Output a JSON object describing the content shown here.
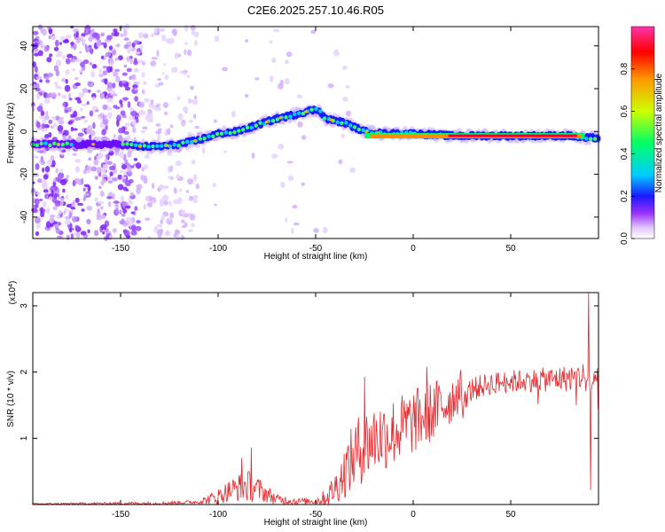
{
  "title": "C2E6.2025.257.10.46.R05",
  "colors": {
    "background": "#ffffff",
    "axis": "#000000",
    "snr_line": "#e8262b",
    "scatter": "#8a2be2"
  },
  "chart_data": [
    {
      "type": "heatmap",
      "xlabel": "Height of straight line (km)",
      "ylabel": "Frequency (Hz)",
      "xlim": [
        -195,
        95
      ],
      "ylim": [
        -50,
        49
      ],
      "x_ticks": [
        -150,
        -100,
        -50,
        0,
        50
      ],
      "y_ticks": [
        -40,
        -20,
        0,
        20,
        40
      ],
      "grid": false,
      "ridge": [
        {
          "x": -195,
          "y": -6
        },
        {
          "x": -170,
          "y": -6
        },
        {
          "x": -150,
          "y": -6
        },
        {
          "x": -140,
          "y": -7
        },
        {
          "x": -130,
          "y": -7
        },
        {
          "x": -120,
          "y": -6
        },
        {
          "x": -110,
          "y": -4
        },
        {
          "x": -100,
          "y": -1
        },
        {
          "x": -90,
          "y": 0
        },
        {
          "x": -80,
          "y": 3
        },
        {
          "x": -70,
          "y": 6
        },
        {
          "x": -60,
          "y": 8
        },
        {
          "x": -52,
          "y": 10
        },
        {
          "x": -48,
          "y": 10
        },
        {
          "x": -45,
          "y": 6
        },
        {
          "x": -40,
          "y": 5
        },
        {
          "x": -35,
          "y": 4
        },
        {
          "x": -30,
          "y": 2
        },
        {
          "x": -25,
          "y": 0
        },
        {
          "x": -15,
          "y": -1
        },
        {
          "x": 0,
          "y": -1
        },
        {
          "x": 20,
          "y": -2
        },
        {
          "x": 50,
          "y": -2
        },
        {
          "x": 80,
          "y": -2
        },
        {
          "x": 88,
          "y": -3
        },
        {
          "x": 95,
          "y": -3
        }
      ],
      "colorbar": {
        "label": "Normalized spectral amplitude",
        "range": [
          0,
          1
        ],
        "ticks": [
          0.0,
          0.2,
          0.4,
          0.6,
          0.8
        ]
      }
    },
    {
      "type": "line",
      "xlabel": "Height of straight line (km)",
      "ylabel": "SNR (10 * v/v)",
      "y_multiplier": "(x10",
      "y_multiplier_exp": "4",
      "y_multiplier_close": ")",
      "xlim": [
        -195,
        95
      ],
      "ylim": [
        0,
        3.2
      ],
      "x_ticks": [
        -150,
        -100,
        -50,
        0,
        50
      ],
      "y_ticks": [
        1,
        2,
        3
      ],
      "grid": false,
      "series_color": "#e8262b",
      "baseline": [
        {
          "x": -195,
          "y": 0.01
        },
        {
          "x": -130,
          "y": 0.02
        },
        {
          "x": -110,
          "y": 0.04
        },
        {
          "x": -100,
          "y": 0.12
        },
        {
          "x": -95,
          "y": 0.2
        },
        {
          "x": -90,
          "y": 0.25
        },
        {
          "x": -85,
          "y": 0.28
        },
        {
          "x": -80,
          "y": 0.24
        },
        {
          "x": -75,
          "y": 0.16
        },
        {
          "x": -70,
          "y": 0.08
        },
        {
          "x": -60,
          "y": 0.05
        },
        {
          "x": -50,
          "y": 0.05
        },
        {
          "x": -45,
          "y": 0.1
        },
        {
          "x": -40,
          "y": 0.25
        },
        {
          "x": -35,
          "y": 0.5
        },
        {
          "x": -30,
          "y": 0.75
        },
        {
          "x": -25,
          "y": 0.9
        },
        {
          "x": -20,
          "y": 1.0
        },
        {
          "x": -10,
          "y": 1.1
        },
        {
          "x": 0,
          "y": 1.25
        },
        {
          "x": 10,
          "y": 1.4
        },
        {
          "x": 20,
          "y": 1.6
        },
        {
          "x": 25,
          "y": 1.75
        },
        {
          "x": 30,
          "y": 1.87
        },
        {
          "x": 40,
          "y": 1.95
        },
        {
          "x": 50,
          "y": 1.98
        },
        {
          "x": 60,
          "y": 2.0
        },
        {
          "x": 70,
          "y": 2.02
        },
        {
          "x": 80,
          "y": 2.05
        },
        {
          "x": 88,
          "y": 2.1
        },
        {
          "x": 92,
          "y": 2.0
        },
        {
          "x": 95,
          "y": 2.0
        }
      ],
      "noise": [
        {
          "x": -195,
          "a": 0.01
        },
        {
          "x": -110,
          "a": 0.03
        },
        {
          "x": -100,
          "a": 0.12
        },
        {
          "x": -85,
          "a": 0.25
        },
        {
          "x": -70,
          "a": 0.08
        },
        {
          "x": -50,
          "a": 0.04
        },
        {
          "x": -40,
          "a": 0.25
        },
        {
          "x": -30,
          "a": 0.55
        },
        {
          "x": -15,
          "a": 0.55
        },
        {
          "x": 0,
          "a": 0.5
        },
        {
          "x": 15,
          "a": 0.45
        },
        {
          "x": 25,
          "a": 0.3
        },
        {
          "x": 35,
          "a": 0.25
        },
        {
          "x": 60,
          "a": 0.25
        },
        {
          "x": 85,
          "a": 0.3
        },
        {
          "x": 95,
          "a": 0.4
        }
      ],
      "spikes": [
        {
          "x": -83,
          "y": 0.86
        },
        {
          "x": -88,
          "y": 0.7
        },
        {
          "x": 7,
          "y": 2.08
        },
        {
          "x": -25,
          "y": 1.93
        },
        {
          "x": 90,
          "y": 3.2
        },
        {
          "x": 91,
          "y": 0.22
        }
      ]
    }
  ]
}
